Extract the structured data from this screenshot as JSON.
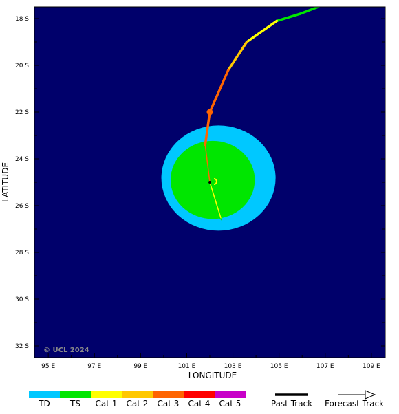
{
  "colors": {
    "ocean": "#00006b",
    "td": "#00c8ff",
    "ts": "#00e600",
    "cat1": "#ffff00",
    "cat2": "#ffc800",
    "cat3": "#ff6400",
    "cat4": "#ff0000",
    "cat5": "#c800c8"
  },
  "map": {
    "xlabel": "LONGITUDE",
    "ylabel": "LATITUDE",
    "copyright": "© UCL 2024",
    "lon_range": [
      94.4,
      109.6
    ],
    "lat_range": [
      -17.5,
      -32.5
    ],
    "lon_ticks": [
      {
        "value": 95,
        "label": "95 E"
      },
      {
        "value": 97,
        "label": "97 E"
      },
      {
        "value": 99,
        "label": "99 E"
      },
      {
        "value": 101,
        "label": "101 E"
      },
      {
        "value": 103,
        "label": "103 E"
      },
      {
        "value": 105,
        "label": "105 E"
      },
      {
        "value": 107,
        "label": "107 E"
      },
      {
        "value": 109,
        "label": "109 E"
      }
    ],
    "lat_ticks": [
      {
        "value": -18,
        "label": "18 S"
      },
      {
        "value": -20,
        "label": "20 S"
      },
      {
        "value": -22,
        "label": "22 S"
      },
      {
        "value": -24,
        "label": "24 S"
      },
      {
        "value": -26,
        "label": "26 S"
      },
      {
        "value": -28,
        "label": "28 S"
      },
      {
        "value": -30,
        "label": "30 S"
      },
      {
        "value": -32,
        "label": "32 S"
      }
    ]
  },
  "wind_fields": [
    {
      "name": "td-wind-field",
      "category": "td",
      "lon_min": 99.9,
      "lon_max": 104.85,
      "lat_max": -22.57,
      "lat_min": -27.07
    },
    {
      "name": "ts-wind-field",
      "category": "ts",
      "lon_min": 100.3,
      "lon_max": 103.95,
      "lat_max": -23.23,
      "lat_min": -26.57
    }
  ],
  "past_track": [
    {
      "lon": 106.7,
      "lat": -17.5,
      "category": "ts"
    },
    {
      "lon": 105.9,
      "lat": -17.8,
      "category": "ts"
    },
    {
      "lon": 104.9,
      "lat": -18.1,
      "category": "ts"
    },
    {
      "lon": 103.6,
      "lat": -19.0,
      "category": "cat1"
    },
    {
      "lon": 102.8,
      "lat": -20.2,
      "category": "cat2"
    },
    {
      "lon": 102.0,
      "lat": -22.0,
      "category": "cat3"
    },
    {
      "lon": 101.8,
      "lat": -23.4,
      "category": "cat3"
    }
  ],
  "current_position": {
    "lon": 102.0,
    "lat": -22.0
  },
  "forecast_track": [
    {
      "lon": 101.8,
      "lat": -23.4
    },
    {
      "lon": 102.0,
      "lat": -25.0
    },
    {
      "lon": 102.5,
      "lat": -26.6
    }
  ],
  "legend": {
    "categories": [
      {
        "key": "td",
        "label": "TD"
      },
      {
        "key": "ts",
        "label": "TS"
      },
      {
        "key": "cat1",
        "label": "Cat 1"
      },
      {
        "key": "cat2",
        "label": "Cat 2"
      },
      {
        "key": "cat3",
        "label": "Cat 3"
      },
      {
        "key": "cat4",
        "label": "Cat 4"
      },
      {
        "key": "cat5",
        "label": "Cat 5"
      }
    ],
    "past_track_label": "Past Track",
    "forecast_track_label": "Forecast Track"
  }
}
